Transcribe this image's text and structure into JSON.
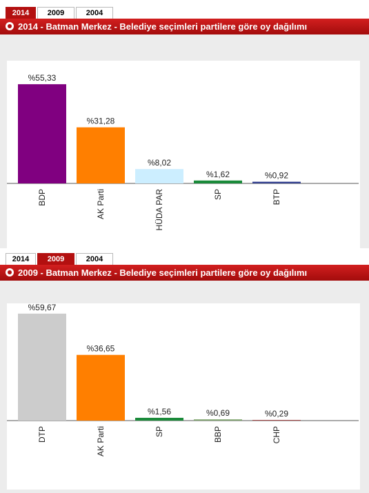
{
  "panels": [
    {
      "tabs": [
        "2014",
        "2009",
        "2004"
      ],
      "active_tab": 0,
      "title": "2014 - Batman Merkez - Belediye seçimleri partilere göre oy dağılımı"
    },
    {
      "tabs": [
        "2014",
        "2009",
        "2004"
      ],
      "active_tab": 1,
      "title": "2009 - Batman Merkez - Belediye seçimleri partilere göre oy dağılımı"
    }
  ],
  "chart_data": [
    {
      "type": "bar",
      "categories": [
        "BDP",
        "AK Parti",
        "HÜDA PAR",
        "SP",
        "BTP"
      ],
      "values": [
        55.33,
        31.28,
        8.02,
        1.62,
        0.92
      ],
      "data_labels": [
        "%55,33",
        "%31,28",
        "%8,02",
        "%1,62",
        "%0,92"
      ],
      "colors": [
        "#800080",
        "#ff7f00",
        "#cceeff",
        "#1a8a3a",
        "#2e3b8c"
      ],
      "ylim": [
        0,
        60
      ],
      "grid": false,
      "legend": "none"
    },
    {
      "type": "bar",
      "categories": [
        "DTP",
        "AK Parti",
        "SP",
        "BBP",
        "CHP"
      ],
      "values": [
        59.67,
        36.65,
        1.56,
        0.69,
        0.29
      ],
      "data_labels": [
        "%59,67",
        "%36,65",
        "%1,56",
        "%0,69",
        "%0,29"
      ],
      "colors": [
        "#cccccc",
        "#ff7f00",
        "#1a8a3a",
        "#7fa66f",
        "#8c1010"
      ],
      "ylim": [
        0,
        60
      ],
      "grid": false,
      "legend": "none"
    }
  ]
}
